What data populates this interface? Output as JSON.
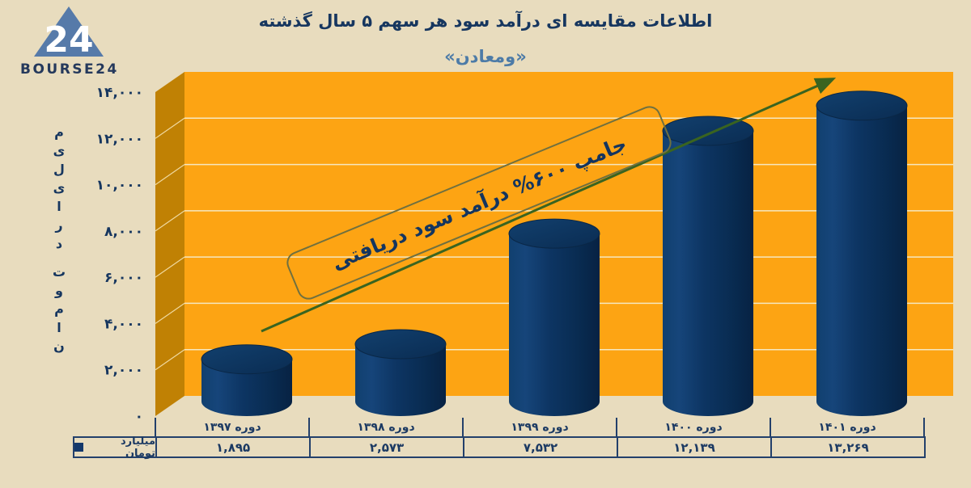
{
  "logo": {
    "brand": "BOURSE24",
    "mark": "24"
  },
  "header": {
    "title": "اطلاعات مقایسه ای درآمد سود هر سهم ۵ سال گذشته",
    "subtitle": "«ومعادن»"
  },
  "annotation": {
    "text": "جامپ ۶۰۰% درآمد سود دریافتی"
  },
  "y_axis": {
    "title": "میلیارد تومان",
    "ticks": [
      "۱۴,۰۰۰",
      "۱۲,۰۰۰",
      "۱۰,۰۰۰",
      "۸,۰۰۰",
      "۶,۰۰۰",
      "۴,۰۰۰",
      "۲,۰۰۰",
      "۰"
    ]
  },
  "legend": {
    "label": "میلیارد تومان"
  },
  "chart_data": {
    "type": "bar",
    "categories": [
      "دوره ۱۳۹۷",
      "دوره ۱۳۹۸",
      "دوره ۱۳۹۹",
      "دوره ۱۴۰۰",
      "دوره ۱۴۰۱"
    ],
    "values": [
      1895,
      2573,
      7532,
      12139,
      13269
    ],
    "value_labels": [
      "۱,۸۹۵",
      "۲,۵۷۳",
      "۷,۵۳۲",
      "۱۲,۱۳۹",
      "۱۳,۲۶۹"
    ],
    "title": "اطلاعات مقایسه ای درآمد سود هر سهم ۵ سال گذشته",
    "xlabel": "",
    "ylabel": "میلیارد تومان",
    "ylim": [
      0,
      14000
    ],
    "ytick_step": 2000,
    "grid": true,
    "bar_style": "3d-cylinder",
    "legend_position": "bottom-left",
    "annotation": "جامپ ۶۰۰% درآمد سود دریافتی",
    "trend_arrow": "up"
  },
  "colors": {
    "background": "#e8dcbe",
    "plot_wall": "#fda413",
    "plot_side_wall": "#c08104",
    "gridline": "#f5e7c0",
    "bar_navy": "#0d3563",
    "text_navy": "#16365f",
    "subtitle_blue": "#4d7ba7",
    "arrow_green": "#3a6420",
    "annotation_border": "#70703f",
    "table_border": "#23406b"
  }
}
